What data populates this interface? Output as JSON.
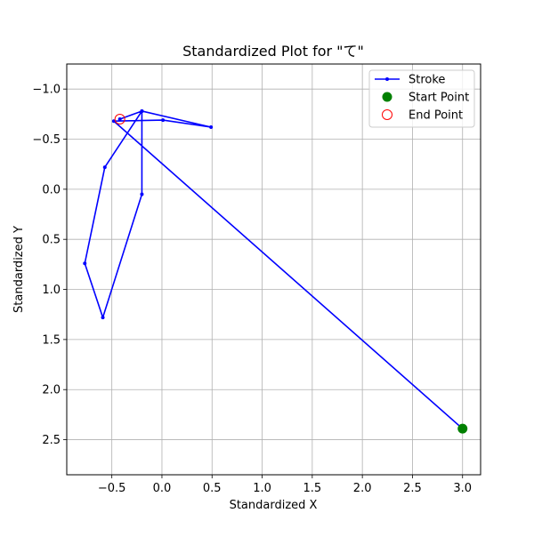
{
  "chart_data": {
    "type": "line",
    "title": "Standardized Plot for \"て\"",
    "xlabel": "Standardized X",
    "ylabel": "Standardized Y",
    "xlim": [
      -0.95,
      3.18
    ],
    "ylim": [
      2.85,
      -1.25
    ],
    "y_inverted": true,
    "grid": true,
    "legend_position": "top-right",
    "xticks": [
      -0.5,
      0.0,
      0.5,
      1.0,
      1.5,
      2.0,
      2.5,
      3.0
    ],
    "xtick_labels": [
      "−0.5",
      "0.0",
      "0.5",
      "1.0",
      "1.5",
      "2.0",
      "2.5",
      "3.0"
    ],
    "yticks": [
      -1.0,
      -0.5,
      0.0,
      0.5,
      1.0,
      1.5,
      2.0,
      2.5
    ],
    "ytick_labels": [
      "−1.0",
      "−0.5",
      "0.0",
      "0.5",
      "1.0",
      "1.5",
      "2.0",
      "2.5"
    ],
    "series": [
      {
        "name": "Stroke",
        "color": "#0000ff",
        "x": [
          3.0,
          -0.48,
          0.01,
          0.49,
          -0.2,
          -0.57,
          -0.77,
          -0.59,
          -0.2,
          -0.2,
          -0.42
        ],
        "y": [
          2.39,
          -0.68,
          -0.69,
          -0.62,
          -0.78,
          -0.22,
          0.74,
          1.28,
          0.05,
          -0.78,
          -0.7
        ]
      }
    ],
    "start_point": {
      "name": "Start Point",
      "x": 3.0,
      "y": 2.39,
      "color": "#008000"
    },
    "end_point": {
      "name": "End Point",
      "x": -0.42,
      "y": -0.7,
      "color": "#ff0000"
    }
  }
}
